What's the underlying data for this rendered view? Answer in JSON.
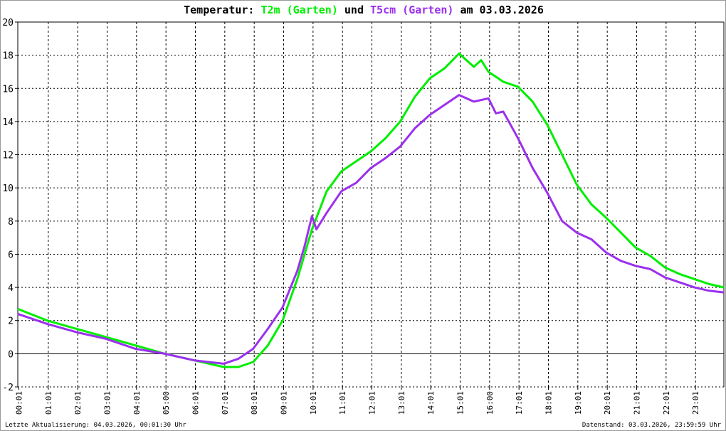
{
  "title": {
    "prefix": "Temperatur: ",
    "series1": "T2m (Garten)",
    "middle": " und ",
    "series2": "T5cm (Garten)",
    "suffix": " am 03.03.2026"
  },
  "footer": {
    "left": "Letzte Aktualisierung: 04.03.2026, 00:01:30 Uhr",
    "right": "Datenstand: 03.03.2026, 23:59:59 Uhr"
  },
  "chart_data": {
    "type": "line",
    "title": "Temperatur: T2m (Garten) und T5cm (Garten) am 03.03.2026",
    "xlabel": "",
    "ylabel": "",
    "xlim": [
      0,
      24
    ],
    "ylim": [
      -2,
      20
    ],
    "grid": true,
    "y_ticks": [
      -2,
      0,
      2,
      4,
      6,
      8,
      10,
      12,
      14,
      16,
      18,
      20
    ],
    "x_ticks": [
      {
        "h": 0,
        "label": "00:01"
      },
      {
        "h": 1,
        "label": "01:01"
      },
      {
        "h": 2,
        "label": "02:01"
      },
      {
        "h": 3,
        "label": "03:01"
      },
      {
        "h": 4,
        "label": "04:01"
      },
      {
        "h": 5,
        "label": "05:00"
      },
      {
        "h": 6,
        "label": "06:01"
      },
      {
        "h": 7,
        "label": "07:01"
      },
      {
        "h": 8,
        "label": "08:01"
      },
      {
        "h": 9,
        "label": "09:01"
      },
      {
        "h": 10,
        "label": "10:01"
      },
      {
        "h": 11,
        "label": "11:01"
      },
      {
        "h": 12,
        "label": "12:01"
      },
      {
        "h": 13,
        "label": "13:01"
      },
      {
        "h": 14,
        "label": "14:01"
      },
      {
        "h": 15,
        "label": "15:01"
      },
      {
        "h": 16,
        "label": "16:00"
      },
      {
        "h": 17,
        "label": "17:01"
      },
      {
        "h": 18,
        "label": "18:01"
      },
      {
        "h": 19,
        "label": "19:01"
      },
      {
        "h": 20,
        "label": "20:01"
      },
      {
        "h": 21,
        "label": "21:01"
      },
      {
        "h": 22,
        "label": "22:01"
      },
      {
        "h": 23,
        "label": "23:01"
      }
    ],
    "series": [
      {
        "name": "T2m (Garten)",
        "color": "#00ee00",
        "x": [
          0,
          1,
          2,
          3,
          4,
          5,
          6,
          7,
          7.5,
          8,
          8.5,
          9,
          9.5,
          10,
          10.5,
          11,
          11.5,
          12,
          12.5,
          13,
          13.5,
          14,
          14.5,
          15,
          15.5,
          15.75,
          16,
          16.5,
          17,
          17.5,
          18,
          18.5,
          19,
          19.5,
          20,
          20.5,
          21,
          21.5,
          22,
          22.5,
          23,
          23.5,
          24
        ],
        "y": [
          2.7,
          2.0,
          1.5,
          1.0,
          0.5,
          0.0,
          -0.4,
          -0.8,
          -0.8,
          -0.5,
          0.5,
          2.0,
          4.5,
          7.5,
          9.8,
          11.0,
          11.6,
          12.2,
          13.0,
          14.0,
          15.5,
          16.6,
          17.2,
          18.1,
          17.3,
          17.7,
          17.0,
          16.4,
          16.1,
          15.2,
          13.8,
          12.0,
          10.2,
          9.0,
          8.2,
          7.3,
          6.4,
          5.9,
          5.2,
          4.8,
          4.5,
          4.2,
          4.0
        ]
      },
      {
        "name": "T5cm (Garten)",
        "color": "#9b30ee",
        "x": [
          0,
          0.5,
          1,
          2,
          3,
          4,
          5,
          6,
          7,
          7.5,
          8,
          8.5,
          9,
          9.5,
          9.75,
          10,
          10.15,
          10.5,
          11,
          11.5,
          12,
          12.5,
          13,
          13.5,
          14,
          14.5,
          15,
          15.5,
          16,
          16.25,
          16.5,
          17,
          17.5,
          18,
          18.5,
          19,
          19.5,
          20,
          20.5,
          21,
          21.5,
          22,
          22.5,
          23,
          23.5,
          24
        ],
        "y": [
          2.4,
          2.1,
          1.8,
          1.3,
          0.9,
          0.3,
          0.0,
          -0.4,
          -0.6,
          -0.3,
          0.3,
          1.5,
          2.8,
          5.0,
          6.5,
          8.3,
          7.5,
          8.5,
          9.8,
          10.3,
          11.2,
          11.8,
          12.5,
          13.6,
          14.4,
          15.0,
          15.6,
          15.2,
          15.4,
          14.5,
          14.6,
          13.0,
          11.2,
          9.7,
          8.0,
          7.3,
          6.9,
          6.1,
          5.6,
          5.3,
          5.1,
          4.6,
          4.3,
          4.0,
          3.8,
          3.7
        ]
      }
    ]
  }
}
